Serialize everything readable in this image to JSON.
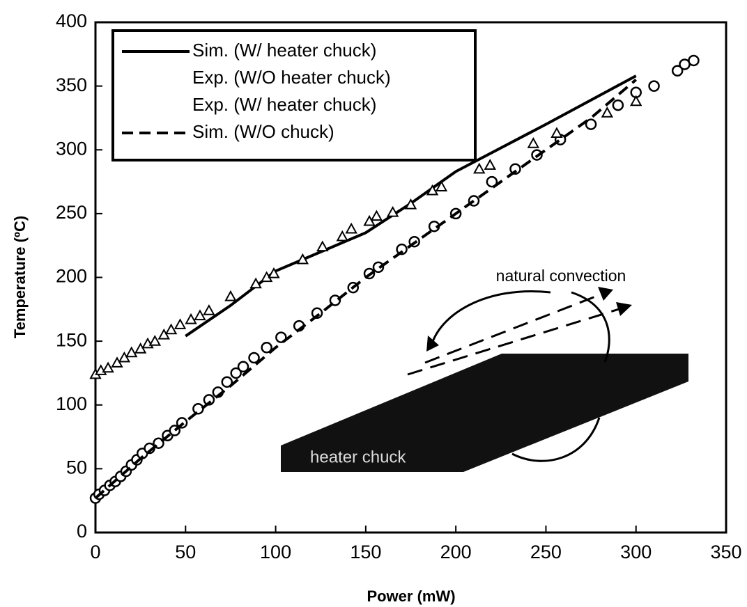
{
  "chart_data": {
    "type": "line",
    "x_label": "Power (mW)",
    "y_label": "Temperature (ºC)",
    "xlim": [
      0,
      350
    ],
    "ylim": [
      0,
      400
    ],
    "xticks": [
      0,
      50,
      100,
      150,
      200,
      250,
      300,
      350
    ],
    "yticks": [
      0,
      50,
      100,
      150,
      200,
      250,
      300,
      350,
      400
    ],
    "legend": "upper left",
    "annotations": [
      "natural convection",
      "heater chuck"
    ],
    "series": [
      {
        "name": "Sim. (W/ heater chuck)",
        "color": "#000000",
        "style": "solid",
        "marker": null,
        "x": [
          50,
          75,
          100,
          125,
          150,
          175,
          200,
          250,
          300
        ],
        "values": [
          154,
          178,
          205,
          220,
          235,
          258,
          283,
          320,
          358
        ]
      },
      {
        "name": "Exp. (W/O heater chuck)",
        "color": "#000000",
        "style": "none",
        "marker": "circle",
        "x": [
          0,
          2,
          5,
          8,
          11,
          14,
          17,
          20,
          23,
          26,
          30,
          35,
          40,
          44,
          48,
          57,
          63,
          68,
          73,
          78,
          82,
          88,
          95,
          103,
          113,
          123,
          133,
          143,
          152,
          157,
          170,
          177,
          188,
          200,
          210,
          220,
          233,
          245,
          258,
          275,
          290,
          300,
          310,
          323,
          327,
          332
        ],
        "values": [
          27,
          30,
          33,
          37,
          40,
          44,
          48,
          53,
          57,
          62,
          66,
          70,
          76,
          80,
          86,
          97,
          104,
          110,
          118,
          125,
          130,
          137,
          145,
          153,
          162,
          172,
          182,
          192,
          203,
          208,
          222,
          228,
          240,
          250,
          260,
          275,
          285,
          296,
          308,
          320,
          335,
          345,
          350,
          362,
          367,
          370
        ]
      },
      {
        "name": "Exp. (W/ heater chuck)",
        "color": "#000000",
        "style": "none",
        "marker": "triangle",
        "x": [
          0,
          3,
          7,
          12,
          16,
          20,
          25,
          29,
          33,
          38,
          42,
          47,
          53,
          58,
          63,
          75,
          89,
          95,
          99,
          115,
          126,
          137,
          142,
          152,
          156,
          165,
          175,
          187,
          192,
          213,
          219,
          243,
          256,
          284,
          300
        ],
        "values": [
          124,
          127,
          129,
          133,
          137,
          141,
          144,
          148,
          150,
          155,
          159,
          163,
          167,
          170,
          174,
          185,
          195,
          200,
          203,
          214,
          224,
          232,
          238,
          244,
          248,
          251,
          257,
          268,
          271,
          285,
          288,
          305,
          313,
          329,
          338
        ]
      },
      {
        "name": "Sim. (W/O chuck)",
        "color": "#000000",
        "style": "dashed",
        "marker": null,
        "x": [
          0,
          25,
          50,
          75,
          100,
          125,
          150,
          175,
          200,
          225,
          250,
          275,
          300
        ],
        "values": [
          27,
          58,
          87,
          115,
          145,
          172,
          200,
          225,
          250,
          275,
          300,
          325,
          355
        ]
      }
    ]
  }
}
